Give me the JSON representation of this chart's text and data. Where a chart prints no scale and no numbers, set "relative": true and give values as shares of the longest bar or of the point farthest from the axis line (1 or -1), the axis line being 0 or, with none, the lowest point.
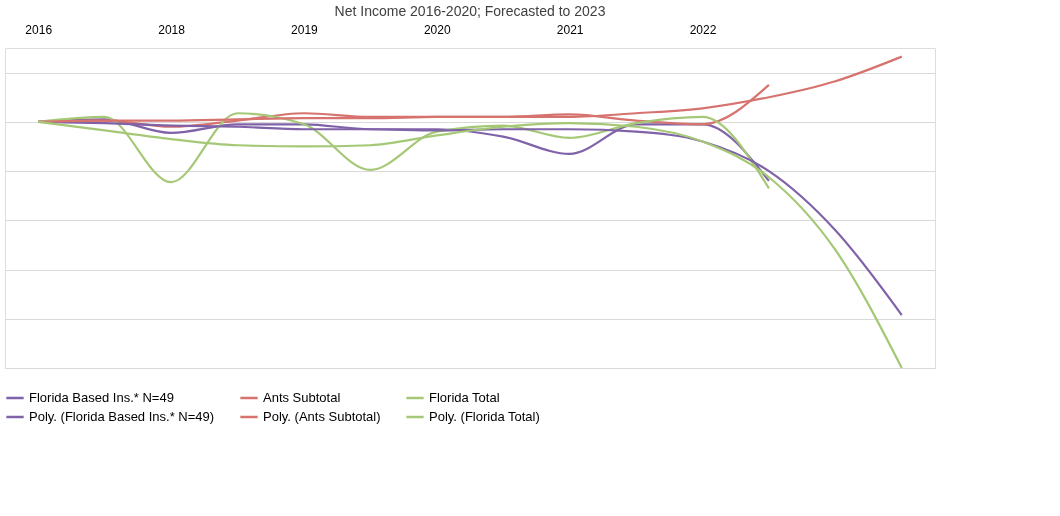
{
  "chart_data": {
    "type": "line",
    "title": "Net Income 2016-2020; Forecasted to 2023",
    "relative": true,
    "grid": "y",
    "legend": "bottom",
    "tick_labels": "x",
    "marker": "none",
    "line_style": "solid",
    "categories": [
      "2016",
      null,
      "2018",
      null,
      "2019",
      null,
      "2020",
      null,
      "2021",
      null,
      "2022",
      null,
      null,
      null
    ],
    "series": [
      {
        "name": "Florida Based Ins.* N=49",
        "color": "#7f62a8",
        "values": [
          0,
          0.01,
          -0.045,
          -0.01,
          -0.01,
          -0.03,
          -0.03,
          -0.06,
          -0.13,
          -0.01,
          -0.01,
          -0.24,
          null,
          null
        ]
      },
      {
        "name": "Ants Subtotal",
        "color": "#d6736f",
        "values": [
          0,
          0.005,
          -0.02,
          0.005,
          0.035,
          0.02,
          0.02,
          0.02,
          0.03,
          0.005,
          -0.01,
          0.15,
          null,
          null
        ]
      },
      {
        "name": "Florida Total",
        "color": "#a5c876",
        "values": [
          0,
          0.02,
          -0.245,
          0.035,
          -0.01,
          -0.195,
          -0.04,
          -0.015,
          -0.065,
          -0.005,
          0.02,
          -0.27,
          null,
          null
        ]
      },
      {
        "name": "Poly. (Florida Based Ins.* N=49)",
        "color": "#7f62a8",
        "values": [
          0,
          -0.005,
          -0.015,
          -0.02,
          -0.03,
          -0.03,
          -0.035,
          -0.03,
          -0.03,
          -0.04,
          -0.08,
          -0.2,
          -0.44,
          -0.785
        ]
      },
      {
        "name": "Poly. (Ants Subtotal)",
        "color": "#d6736f",
        "values": [
          0,
          0.005,
          0.005,
          0.01,
          0.015,
          0.015,
          0.02,
          0.02,
          0.02,
          0.035,
          0.055,
          0.1,
          0.165,
          0.265
        ]
      },
      {
        "name": "Poly. (Florida Total)",
        "color": "#a5c876",
        "values": [
          0,
          -0.035,
          -0.07,
          -0.095,
          -0.1,
          -0.095,
          -0.055,
          -0.02,
          -0.005,
          -0.02,
          -0.08,
          -0.225,
          -0.52,
          -1
        ]
      }
    ]
  }
}
